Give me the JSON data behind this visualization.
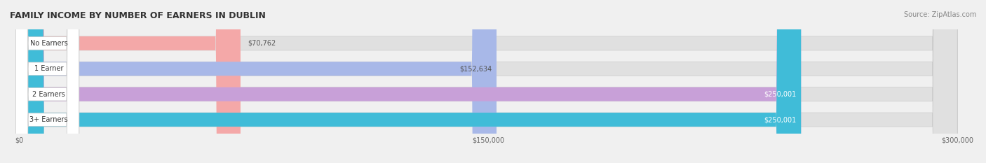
{
  "title": "FAMILY INCOME BY NUMBER OF EARNERS IN DUBLIN",
  "source": "Source: ZipAtlas.com",
  "categories": [
    "No Earners",
    "1 Earner",
    "2 Earners",
    "3+ Earners"
  ],
  "values": [
    70762,
    152634,
    250001,
    250001
  ],
  "bar_colors": [
    "#F4A8A8",
    "#A8B8E8",
    "#C8A0D8",
    "#40BCD8"
  ],
  "bar_edge_colors": [
    "#E88888",
    "#8898C8",
    "#A880B8",
    "#20A0B8"
  ],
  "label_colors": [
    "#555555",
    "#555555",
    "#ffffff",
    "#ffffff"
  ],
  "x_max": 300000,
  "x_ticks": [
    0,
    150000,
    300000
  ],
  "x_tick_labels": [
    "$0",
    "$150,000",
    "$300,000"
  ],
  "value_labels": [
    "$70,762",
    "$152,634",
    "$250,001",
    "$250,001"
  ],
  "bg_color": "#f0f0f0",
  "bar_bg_color": "#e8e8e8",
  "title_fontsize": 9,
  "source_fontsize": 7,
  "label_fontsize": 7,
  "value_fontsize": 7,
  "tick_fontsize": 7
}
